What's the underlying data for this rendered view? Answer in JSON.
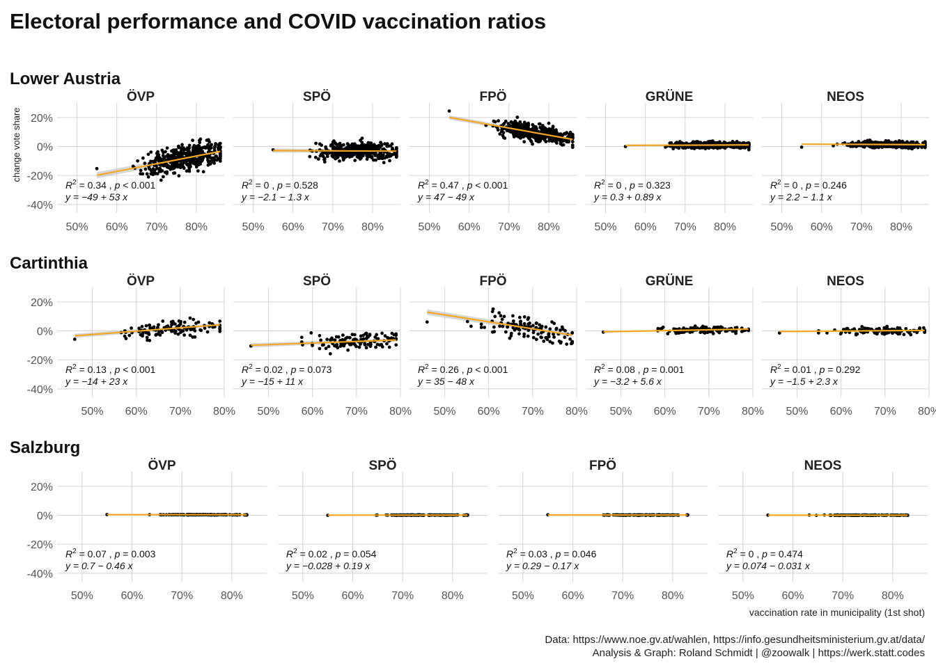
{
  "title": "Electoral performance and COVID vaccination ratios",
  "xlabel": "vaccination rate in municipality (1st shot)",
  "ylabel": "change vote share",
  "caption_line1": "Data: https://www.noe.gv.at/wahlen, https://info.gesundheitsministerium.gv.at/data/",
  "caption_line2": "Analysis & Graph: Roland Schmidt | @zoowalk | https://werk.statt.codes",
  "colors": {
    "fit": "#F5A623",
    "points": "#000000",
    "band": "#bdbdbd",
    "grid": "#d4d4d4"
  },
  "chart_data": [
    {
      "region": "Lower Austria",
      "type": "scatter",
      "xlim": [
        0.45,
        0.87
      ],
      "ylim": [
        -0.42,
        0.3
      ],
      "xticks": [
        0.5,
        0.6,
        0.7,
        0.8
      ],
      "xtick_labels": [
        "50%",
        "60%",
        "70%",
        "80%"
      ],
      "yticks": [
        -0.4,
        -0.2,
        0.0,
        0.2
      ],
      "ytick_labels": [
        "-40%",
        "-20%",
        "0%",
        "20%"
      ],
      "point_range": [
        0.55,
        0.86
      ],
      "points_per_panel": 420,
      "panels": [
        {
          "party": "ÖVP",
          "r2": "0.34",
          "p": "< 0.001",
          "eq": "y = −49 + 53 x",
          "intercept": -0.49,
          "slope": 0.53,
          "spread": 0.045
        },
        {
          "party": "SPÖ",
          "r2": "0",
          "p": "= 0.528",
          "eq": "y = −2.1 − 1.3 x",
          "intercept": -0.021,
          "slope": -0.013,
          "spread": 0.03
        },
        {
          "party": "FPÖ",
          "r2": "0.47",
          "p": "< 0.001",
          "eq": "y = 47 − 49 x",
          "intercept": 0.47,
          "slope": -0.49,
          "spread": 0.03
        },
        {
          "party": "GRÜNE",
          "r2": "0",
          "p": "= 0.323",
          "eq": "y = 0.3 + 0.89 x",
          "intercept": 0.003,
          "slope": 0.0089,
          "spread": 0.011
        },
        {
          "party": "NEOS",
          "r2": "0",
          "p": "= 0.246",
          "eq": "y = 2.2 − 1.1 x",
          "intercept": 0.022,
          "slope": -0.011,
          "spread": 0.011
        }
      ]
    },
    {
      "region": "Cartinthia",
      "type": "scatter",
      "xlim": [
        0.42,
        0.8
      ],
      "ylim": [
        -0.42,
        0.3
      ],
      "xticks": [
        0.5,
        0.6,
        0.7,
        0.8
      ],
      "xtick_labels": [
        "50%",
        "60%",
        "70%",
        "80%"
      ],
      "yticks": [
        -0.4,
        -0.2,
        0.0,
        0.2
      ],
      "ytick_labels": [
        "-40%",
        "-20%",
        "0%",
        "20%"
      ],
      "point_range": [
        0.46,
        0.79
      ],
      "points_per_panel": 120,
      "panels": [
        {
          "party": "ÖVP",
          "r2": "0.13",
          "p": "< 0.001",
          "eq": "y = −14 + 23 x",
          "intercept": -0.14,
          "slope": 0.23,
          "spread": 0.03
        },
        {
          "party": "SPÖ",
          "r2": "0.02",
          "p": "= 0.073",
          "eq": "y = −15 + 11 x",
          "intercept": -0.15,
          "slope": 0.11,
          "spread": 0.03
        },
        {
          "party": "FPÖ",
          "r2": "0.26",
          "p": "< 0.001",
          "eq": "y = 35 − 48 x",
          "intercept": 0.35,
          "slope": -0.48,
          "spread": 0.04
        },
        {
          "party": "GRÜNE",
          "r2": "0.08",
          "p": "= 0.001",
          "eq": "y = −3.2 + 5.6 x",
          "intercept": -0.032,
          "slope": 0.056,
          "spread": 0.012
        },
        {
          "party": "NEOS",
          "r2": "0.01",
          "p": "= 0.292",
          "eq": "y = −1.5 + 2.3 x",
          "intercept": -0.015,
          "slope": 0.023,
          "spread": 0.012
        }
      ]
    },
    {
      "region": "Salzburg",
      "type": "scatter",
      "xlim": [
        0.45,
        0.87
      ],
      "ylim": [
        -0.42,
        0.3
      ],
      "xticks": [
        0.5,
        0.6,
        0.7,
        0.8
      ],
      "xtick_labels": [
        "50%",
        "60%",
        "70%",
        "80%"
      ],
      "yticks": [
        -0.4,
        -0.2,
        0.0,
        0.2
      ],
      "ytick_labels": [
        "-40%",
        "-20%",
        "0%",
        "20%"
      ],
      "point_range": [
        0.55,
        0.83
      ],
      "points_per_panel": 110,
      "panels": [
        {
          "party": "ÖVP",
          "r2": "0.07",
          "p": "= 0.003",
          "eq": "y = 0.7 − 0.46 x",
          "intercept": 0.007,
          "slope": -0.0046,
          "spread": 0.0008
        },
        {
          "party": "SPÖ",
          "r2": "0.02",
          "p": "= 0.054",
          "eq": "y = −0.028 + 0.19 x",
          "intercept": -0.00028,
          "slope": 0.0019,
          "spread": 0.0008
        },
        {
          "party": "FPÖ",
          "r2": "0.03",
          "p": "= 0.046",
          "eq": "y = 0.29 − 0.17 x",
          "intercept": 0.0029,
          "slope": -0.0017,
          "spread": 0.0008
        },
        {
          "party": "NEOS",
          "r2": "0",
          "p": "= 0.474",
          "eq": "y = 0.074 − 0.031 x",
          "intercept": 0.00074,
          "slope": -0.00031,
          "spread": 0.0008
        }
      ]
    }
  ]
}
